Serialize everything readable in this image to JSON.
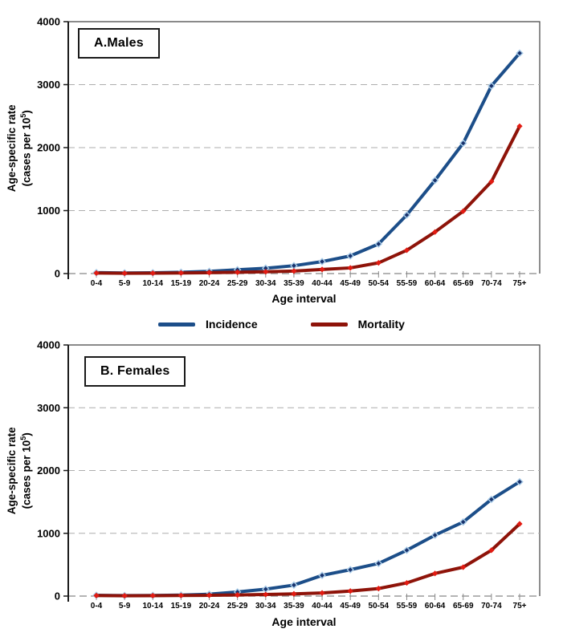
{
  "ui": {
    "y_axis_label": {
      "line1": "Age-specific rate",
      "line2_prefix": "(cases per 10",
      "superscript": "5",
      "line2_suffix": ")"
    },
    "colors": {
      "incidence_line": "#1C4E89",
      "incidence_marker": "#17316B",
      "incidence_marker_edge": "#A9CCE8",
      "mortality_line": "#8E1309",
      "mortality_marker": "#E21B12",
      "grid": "#ADADAD",
      "zero_line": "#9C9C9C",
      "axis": "#1A1A1A",
      "frame": "#444444",
      "x_tick": "#8A8A8A"
    }
  },
  "chart_data": [
    {
      "type": "line",
      "title": "A.Males",
      "categories": [
        "0-4",
        "5-9",
        "10-14",
        "15-19",
        "20-24",
        "25-29",
        "30-34",
        "35-39",
        "40-44",
        "45-49",
        "50-54",
        "55-59",
        "60-64",
        "65-69",
        "70-74",
        "75+"
      ],
      "series": [
        {
          "name": "Incidence",
          "color": "#1C4E89",
          "marker": "diamond",
          "marker_fill": "#17316B",
          "marker_edge": "#A9CCE8",
          "values": [
            15,
            10,
            12,
            20,
            35,
            60,
            85,
            125,
            190,
            280,
            470,
            930,
            1480,
            2070,
            2980,
            3500
          ]
        },
        {
          "name": "Mortality",
          "color": "#8E1309",
          "marker": "diamond",
          "marker_fill": "#E21B12",
          "marker_edge": "#E21B12",
          "values": [
            8,
            5,
            6,
            10,
            14,
            20,
            28,
            40,
            65,
            90,
            170,
            370,
            660,
            990,
            1460,
            2340
          ]
        }
      ],
      "xlabel": "Age interval",
      "ylabel": "Age-specific rate (cases per 10⁵)",
      "ylim": [
        0,
        4000
      ],
      "yticks": [
        0,
        1000,
        2000,
        3000,
        4000
      ],
      "grid": "horizontal dashed gridlines at 1000, 2000, 3000 and dashed zero line",
      "legend_position": "shared legend row between panel A and panel B"
    },
    {
      "type": "line",
      "title": "B. Females",
      "categories": [
        "0-4",
        "5-9",
        "10-14",
        "15-19",
        "20-24",
        "25-29",
        "30-34",
        "35-39",
        "40-44",
        "45-49",
        "50-54",
        "55-59",
        "60-64",
        "65-69",
        "70-74",
        "75+"
      ],
      "series": [
        {
          "name": "Incidence",
          "color": "#1C4E89",
          "marker": "diamond",
          "marker_fill": "#17316B",
          "marker_edge": "#A9CCE8",
          "values": [
            12,
            8,
            10,
            16,
            30,
            65,
            110,
            175,
            330,
            420,
            520,
            730,
            970,
            1180,
            1540,
            1820
          ]
        },
        {
          "name": "Mortality",
          "color": "#8E1309",
          "marker": "diamond",
          "marker_fill": "#E21B12",
          "marker_edge": "#E21B12",
          "values": [
            8,
            5,
            6,
            9,
            12,
            18,
            25,
            35,
            50,
            80,
            120,
            210,
            360,
            460,
            730,
            1150
          ]
        }
      ],
      "xlabel": "Age interval",
      "ylabel": "Age-specific rate (cases per 10⁵)",
      "ylim": [
        0,
        4000
      ],
      "yticks": [
        0,
        1000,
        2000,
        3000,
        4000
      ],
      "grid": "horizontal dashed gridlines at 1000, 2000, 3000 and dashed zero line",
      "legend_position": "shared legend row between panel A and panel B"
    }
  ]
}
